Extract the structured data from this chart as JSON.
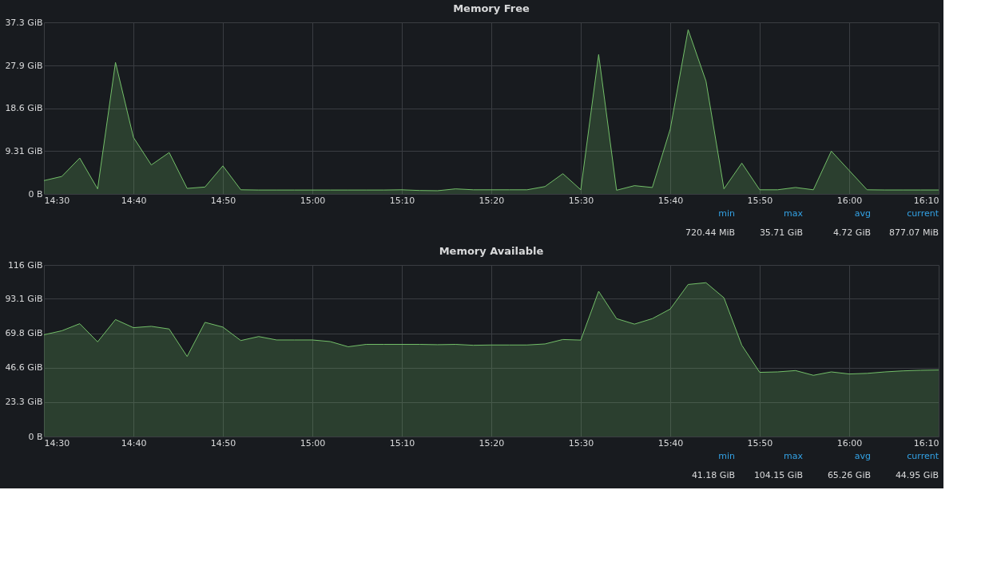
{
  "chart_data": [
    {
      "type": "area",
      "title": "Memory Free",
      "x": [
        14.5,
        14.5333,
        14.5667,
        14.6,
        14.6333,
        14.6667,
        14.7,
        14.7333,
        14.7667,
        14.8,
        14.8333,
        14.8667,
        14.9,
        14.9333,
        14.9667,
        15,
        15.0333,
        15.0667,
        15.1,
        15.1333,
        15.1667,
        15.2,
        15.2333,
        15.2667,
        15.3,
        15.3333,
        15.3667,
        15.4,
        15.4333,
        15.4667,
        15.5,
        15.5333,
        15.5667,
        15.6,
        15.6333,
        15.6667,
        15.7,
        15.7333,
        15.7667,
        15.8,
        15.8333,
        15.8667,
        15.9,
        15.9333,
        15.9667,
        16,
        16.0333,
        16.0667,
        16.1,
        16.1333,
        16.1667
      ],
      "series": [
        {
          "color": "#73bf69",
          "values": [
            2.9,
            3.8,
            7.8,
            1.1,
            28.6,
            12.3,
            6.3,
            9.0,
            1.2,
            1.5,
            6.1,
            0.9,
            0.85,
            0.85,
            0.85,
            0.85,
            0.85,
            0.85,
            0.85,
            0.85,
            0.9,
            0.75,
            0.7,
            1.1,
            0.9,
            0.9,
            0.9,
            0.9,
            1.6,
            4.4,
            0.9,
            30.3,
            0.8,
            1.8,
            1.4,
            14.1,
            35.7,
            24.5,
            1.1,
            6.7,
            0.9,
            0.9,
            1.4,
            0.9,
            9.3,
            5.1,
            0.9,
            0.86,
            0.86,
            0.86,
            0.86
          ]
        }
      ],
      "xlim": [
        14.5,
        16.1667
      ],
      "xticks": [
        {
          "value": 14.5,
          "label": "14:30"
        },
        {
          "value": 14.6667,
          "label": "14:40"
        },
        {
          "value": 14.8333,
          "label": "14:50"
        },
        {
          "value": 15,
          "label": "15:00"
        },
        {
          "value": 15.1667,
          "label": "15:10"
        },
        {
          "value": 15.3333,
          "label": "15:20"
        },
        {
          "value": 15.5,
          "label": "15:30"
        },
        {
          "value": 15.6667,
          "label": "15:40"
        },
        {
          "value": 15.8333,
          "label": "15:50"
        },
        {
          "value": 16,
          "label": "16:00"
        },
        {
          "value": 16.1667,
          "label": "16:10"
        }
      ],
      "ylim": [
        0,
        37.3
      ],
      "yticks": [
        {
          "value": 0,
          "label": "0 B"
        },
        {
          "value": 9.31,
          "label": "9.31 GiB"
        },
        {
          "value": 18.6,
          "label": "18.6 GiB"
        },
        {
          "value": 27.9,
          "label": "27.9 GiB"
        },
        {
          "value": 37.3,
          "label": "37.3 GiB"
        }
      ],
      "grid": true,
      "annotations": [
        "min",
        "max",
        "avg",
        "current",
        "720.44 MiB",
        "35.71 GiB",
        "4.72 GiB",
        "877.07 MiB"
      ]
    },
    {
      "type": "area",
      "title": "Memory Available",
      "x": [
        14.5,
        14.5333,
        14.5667,
        14.6,
        14.6333,
        14.6667,
        14.7,
        14.7333,
        14.7667,
        14.8,
        14.8333,
        14.8667,
        14.9,
        14.9333,
        14.9667,
        15,
        15.0333,
        15.0667,
        15.1,
        15.1333,
        15.1667,
        15.2,
        15.2333,
        15.2667,
        15.3,
        15.3333,
        15.3667,
        15.4,
        15.4333,
        15.4667,
        15.5,
        15.5333,
        15.5667,
        15.6,
        15.6333,
        15.6667,
        15.7,
        15.7333,
        15.7667,
        15.8,
        15.8333,
        15.8667,
        15.9,
        15.9333,
        15.9667,
        16,
        16.0333,
        16.0667,
        16.1,
        16.1333,
        16.1667
      ],
      "series": [
        {
          "color": "#73bf69",
          "values": [
            68.8,
            71.5,
            76.3,
            64.0,
            79.1,
            73.6,
            74.5,
            72.7,
            54.1,
            77.2,
            74.0,
            64.9,
            67.6,
            65.3,
            65.3,
            65.3,
            64.2,
            60.7,
            62.3,
            62.3,
            62.3,
            62.3,
            62.1,
            62.3,
            61.7,
            61.9,
            61.9,
            61.9,
            62.6,
            65.6,
            65.2,
            98.2,
            79.7,
            76.0,
            79.7,
            86.2,
            102.8,
            104.0,
            93.8,
            61.7,
            43.4,
            43.7,
            44.6,
            41.4,
            43.7,
            42.3,
            42.7,
            43.7,
            44.4,
            44.8,
            45.0
          ]
        }
      ],
      "xlim": [
        14.5,
        16.1667
      ],
      "xticks": [
        {
          "value": 14.5,
          "label": "14:30"
        },
        {
          "value": 14.6667,
          "label": "14:40"
        },
        {
          "value": 14.8333,
          "label": "14:50"
        },
        {
          "value": 15,
          "label": "15:00"
        },
        {
          "value": 15.1667,
          "label": "15:10"
        },
        {
          "value": 15.3333,
          "label": "15:20"
        },
        {
          "value": 15.5,
          "label": "15:30"
        },
        {
          "value": 15.6667,
          "label": "15:40"
        },
        {
          "value": 15.8333,
          "label": "15:50"
        },
        {
          "value": 16,
          "label": "16:00"
        },
        {
          "value": 16.1667,
          "label": "16:10"
        }
      ],
      "ylim": [
        0,
        116
      ],
      "yticks": [
        {
          "value": 0,
          "label": "0 B"
        },
        {
          "value": 23.3,
          "label": "23.3 GiB"
        },
        {
          "value": 46.6,
          "label": "46.6 GiB"
        },
        {
          "value": 69.8,
          "label": "69.8 GiB"
        },
        {
          "value": 93.1,
          "label": "93.1 GiB"
        },
        {
          "value": 116,
          "label": "116 GiB"
        }
      ],
      "grid": true,
      "annotations": [
        "min",
        "max",
        "avg",
        "current",
        "41.18 GiB",
        "104.15 GiB",
        "65.26 GiB",
        "44.95 GiB"
      ]
    }
  ]
}
